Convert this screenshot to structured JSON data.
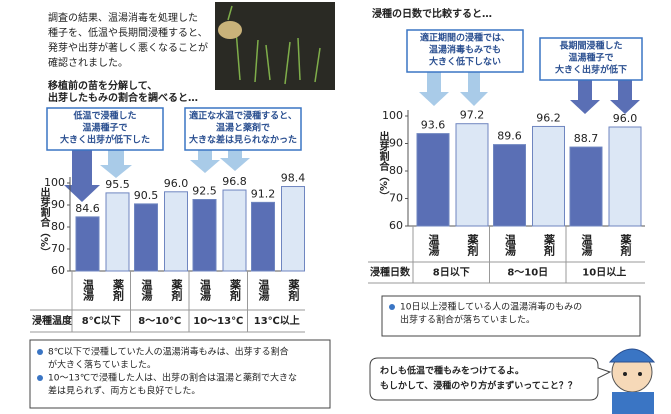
{
  "intro": [
    "調査の結果、温湯消毒を処理した",
    "種子を、低温や長期間浸種すると、",
    "発芽や出芽が著しく悪くなることが",
    "確認されました。"
  ],
  "chart_data": [
    {
      "type": "bar",
      "title": [
        "移植前の苗を分解して、",
        "出芽したもみの割合を調べると…"
      ],
      "ylabel": "出芽割合（%）",
      "xlabel": "浸種温度",
      "categories": [
        "8℃以下",
        "8～10℃",
        "10～13℃",
        "13℃以上"
      ],
      "series": [
        {
          "name": "温湯",
          "color": "#5a6fb5",
          "values": [
            84.6,
            90.5,
            92.5,
            91.2
          ]
        },
        {
          "name": "薬剤",
          "color": "#dce7f5",
          "values": [
            95.5,
            96,
            96.8,
            98.4
          ],
          "value_labels": [
            "95.5",
            "96.0",
            "96.8",
            "98.4"
          ]
        }
      ],
      "ylim": [
        60,
        100
      ],
      "yticks": [
        60,
        70,
        80,
        90,
        100
      ],
      "annotations": [
        [
          "低温で浸種した",
          "温湯種子で",
          "大きく出芽が低下した"
        ],
        [
          "適正な水温で浸種すると、",
          "温湯と薬剤で",
          "大きな差は見られなかった"
        ]
      ]
    },
    {
      "type": "bar",
      "title": [
        "浸種の日数で比較すると…"
      ],
      "ylabel": "出芽割合（%）",
      "xlabel": "浸種日数",
      "categories": [
        "8日以下",
        "8～10日",
        "10日以上"
      ],
      "series": [
        {
          "name": "温湯",
          "color": "#5a6fb5",
          "values": [
            93.6,
            89.6,
            88.7
          ]
        },
        {
          "name": "薬剤",
          "color": "#dce7f5",
          "values": [
            97.2,
            96.2,
            96
          ],
          "value_labels": [
            "97.2",
            "96.2",
            "96.0"
          ]
        }
      ],
      "ylim": [
        60,
        100
      ],
      "yticks": [
        60,
        70,
        80,
        90,
        100
      ],
      "annotations": [
        [
          "適正期間の浸種では、",
          "温湯消毒もみでも",
          "大きく低下しない"
        ],
        [
          "長期間浸種した",
          "温湯種子で",
          "大きく出芽が低下"
        ]
      ]
    }
  ],
  "notes_left": [
    [
      "8℃以下で浸種していた人の温湯消毒もみは、出芽する割合",
      "が大きく落ちていました。"
    ],
    [
      "10～13℃で浸種した人は、出芽の割合は温湯と薬剤で大きな",
      "差は見られず、両方とも良好でした。"
    ]
  ],
  "notes_right": [
    [
      "10日以上浸種している人の温湯消毒のもみの",
      "出芽する割合が落ちていました。"
    ]
  ],
  "speech": [
    "わしも低温で種もみをつけてるよ。",
    "もしかして、浸種のやり方がまずいってこと？？"
  ]
}
